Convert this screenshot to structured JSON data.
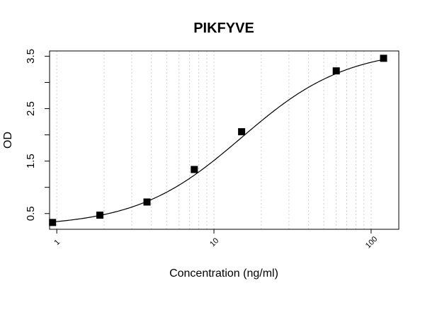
{
  "chart_data": {
    "type": "scatter",
    "title": "PIKFYVE",
    "xlabel": "Concentration (ng/ml)",
    "ylabel": "OD",
    "x_scale": "log",
    "xlim": [
      0.9,
      150
    ],
    "ylim": [
      0.2,
      3.6
    ],
    "x_ticks": [
      1,
      10,
      100
    ],
    "x_tick_labels": [
      "1",
      "10",
      "100"
    ],
    "y_ticks": [
      0.5,
      1,
      1.5,
      2,
      2.5,
      3,
      3.5
    ],
    "y_tick_labels": [
      "0.5",
      "",
      "1.5",
      "",
      "2.5",
      "",
      "3.5"
    ],
    "grid": "vertical dotted at log minor ticks",
    "marker": "filled square",
    "points": [
      {
        "x": 0.94,
        "y": 0.33
      },
      {
        "x": 1.88,
        "y": 0.47
      },
      {
        "x": 3.75,
        "y": 0.72
      },
      {
        "x": 7.5,
        "y": 1.34
      },
      {
        "x": 15,
        "y": 2.06
      },
      {
        "x": 60,
        "y": 3.22
      },
      {
        "x": 120,
        "y": 3.46
      }
    ],
    "fit": {
      "model": "4-parameter logistic",
      "bottom": 0.25,
      "top": 3.65,
      "ec50": 15.0,
      "hill": 1.3
    }
  }
}
